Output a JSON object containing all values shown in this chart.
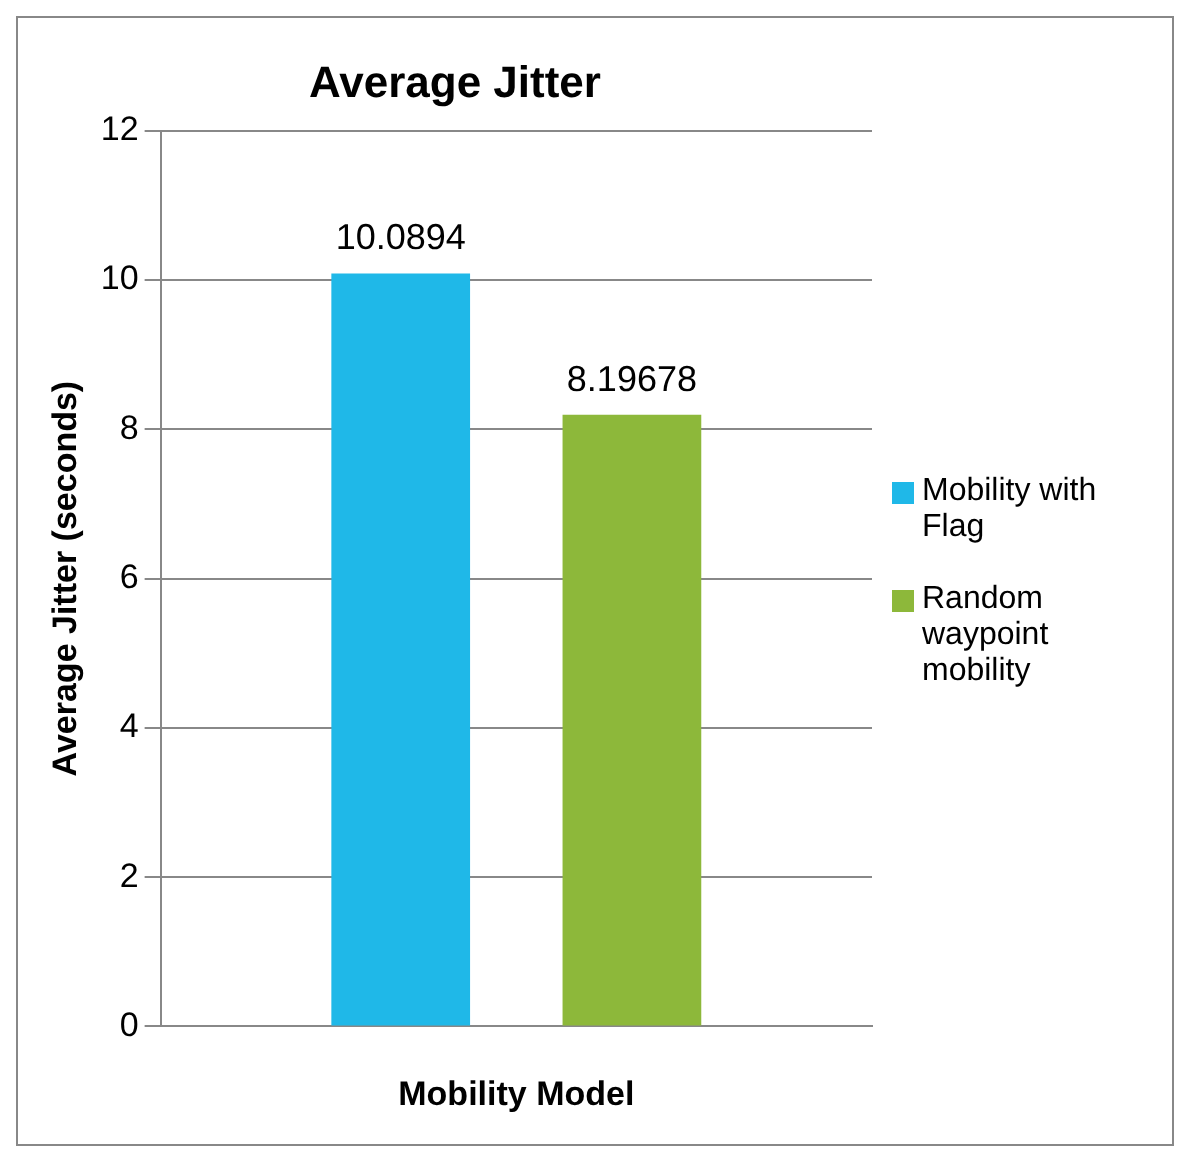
{
  "chart_data": {
    "type": "bar",
    "title": "Average Jitter",
    "xlabel": "Mobility Model",
    "ylabel": "Average Jitter (seconds)",
    "categories": [
      null
    ],
    "series": [
      {
        "name": "Mobility with Flag",
        "color": "#1fb8e8",
        "values": [
          10.0894
        ]
      },
      {
        "name": "Random waypoint mobility",
        "color": "#8db83a",
        "values": [
          8.19678
        ]
      }
    ],
    "ylim": [
      0,
      12
    ],
    "yticks": [
      0,
      2,
      4,
      6,
      8,
      10,
      12
    ],
    "grid": "y",
    "legend": "right",
    "data_labels": true
  }
}
